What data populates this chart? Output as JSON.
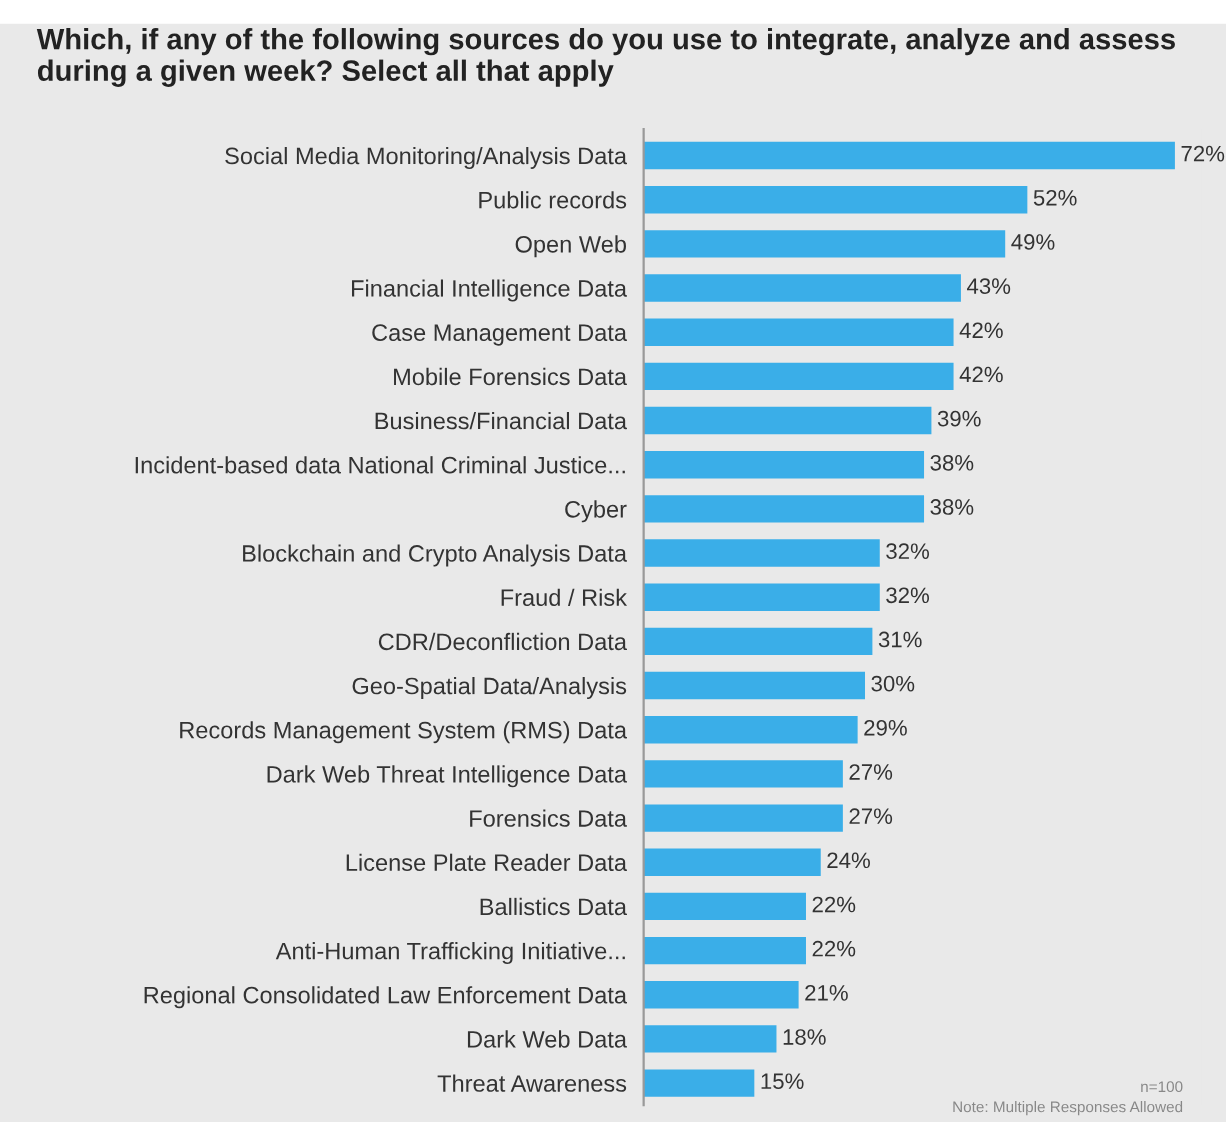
{
  "chart_data": {
    "type": "bar",
    "orientation": "horizontal",
    "title": "Which, if any of the following sources do you use to integrate, analyze and assess during a given week? Select all that apply",
    "categories": [
      "Social Media Monitoring/Analysis Data",
      "Public records",
      "Open Web",
      "Financial Intelligence Data",
      "Case Management Data",
      "Mobile Forensics Data",
      "Business/Financial Data",
      "Incident-based data National Criminal Justice...",
      "Cyber",
      "Blockchain and Crypto Analysis Data",
      "Fraud / Risk",
      "CDR/Deconfliction Data",
      "Geo-Spatial Data/Analysis",
      "Records Management System (RMS) Data",
      "Dark Web Threat Intelligence Data",
      "Forensics Data",
      "License Plate Reader Data",
      "Ballistics Data",
      "Anti-Human Trafficking Initiative...",
      "Regional Consolidated Law Enforcement Data",
      "Dark Web Data",
      "Threat Awareness"
    ],
    "values": [
      72,
      52,
      49,
      43,
      42,
      42,
      39,
      38,
      38,
      32,
      32,
      31,
      30,
      29,
      27,
      27,
      24,
      22,
      22,
      21,
      18,
      15
    ],
    "value_labels": [
      "72%",
      "52%",
      "49%",
      "43%",
      "42%",
      "42%",
      "39%",
      "38%",
      "38%",
      "32%",
      "32%",
      "31%",
      "30%",
      "29%",
      "27%",
      "27%",
      "24%",
      "22%",
      "22%",
      "21%",
      "18%",
      "15%"
    ],
    "color": "#3aaee8",
    "grid": false,
    "legend": false,
    "annotations": [
      "n=100",
      "Note: Multiple Responses Allowed"
    ]
  }
}
